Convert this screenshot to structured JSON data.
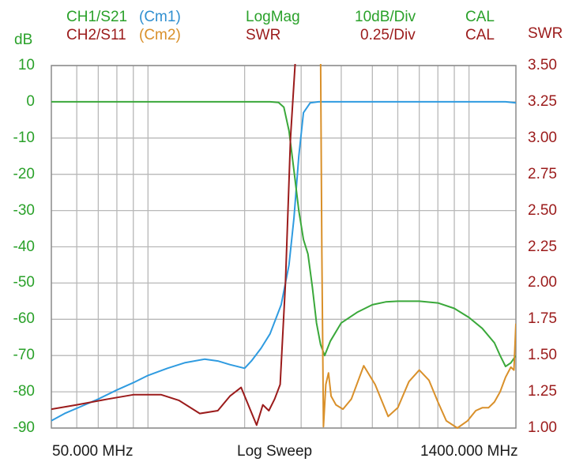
{
  "header": {
    "ch1_label": "CH1/S21",
    "ch1_marker": "(Cm1)",
    "ch2_label": "CH2/S11",
    "ch2_marker": "(Cm2)",
    "ch1_format": "LogMag",
    "ch2_format": "SWR",
    "ch1_scale": "10dB/Div",
    "ch2_scale": "0.25/Div",
    "ch1_cal": "CAL",
    "ch2_cal": "CAL"
  },
  "footer": {
    "start_freq": "50.000 MHz",
    "sweep_mode": "Log Sweep",
    "stop_freq": "1400.000 MHz"
  },
  "colors": {
    "s21": "#2f9be0",
    "s21_band": "#3aa83a",
    "s11": "#9b1b1b",
    "s11_band": "#d9902a",
    "grid": "#b8b8b8",
    "left_axis": "#2aa12a",
    "right_axis": "#9b1b1b"
  },
  "chart_data": {
    "type": "line",
    "x_scale": "log",
    "x_range_mhz": [
      50,
      1400
    ],
    "left_axis": {
      "label": "dB",
      "ylim": [
        -90,
        10
      ],
      "tick_labels": [
        "10",
        "0",
        "-10",
        "-20",
        "-30",
        "-40",
        "-50",
        "-60",
        "-70",
        "-80",
        "-90"
      ]
    },
    "right_axis": {
      "label": "SWR",
      "ylim": [
        1.0,
        3.5
      ],
      "tick_labels": [
        "3.50",
        "3.25",
        "3.00",
        "2.75",
        "2.50",
        "2.25",
        "2.00",
        "1.75",
        "1.50",
        "1.25",
        "1.00"
      ]
    },
    "grid": true,
    "series": [
      {
        "name": "CH1/S21",
        "axis": "left",
        "x_mhz": [
          50,
          55,
          62,
          70,
          80,
          90,
          100,
          115,
          130,
          150,
          165,
          180,
          200,
          210,
          225,
          240,
          260,
          275,
          285,
          295,
          305,
          320,
          340,
          370,
          400,
          450,
          500,
          600,
          700,
          800,
          900,
          1000,
          1100,
          1200,
          1300,
          1400
        ],
        "y": [
          -88,
          -86,
          -84,
          -82,
          -79.5,
          -77.5,
          -75.5,
          -73.5,
          -72,
          -71,
          -71.5,
          -72.5,
          -73.5,
          -71.5,
          -68,
          -64,
          -56,
          -45,
          -32,
          -15,
          -3,
          -0.3,
          0,
          0,
          0,
          0,
          0,
          0,
          0,
          0,
          0,
          0,
          0,
          0,
          0,
          -0.3
        ]
      },
      {
        "name": "CH1/S21 band",
        "axis": "left",
        "x_mhz": [
          50,
          200,
          240,
          255,
          265,
          275,
          285,
          295,
          305,
          315,
          325,
          335,
          345,
          355,
          370,
          400,
          450,
          500,
          550,
          600,
          700,
          800,
          900,
          1000,
          1100,
          1200,
          1250,
          1300,
          1350,
          1400
        ],
        "y": [
          0,
          0,
          0,
          -0.2,
          -1.5,
          -8,
          -19,
          -30,
          -38,
          -42,
          -51,
          -61,
          -67,
          -70,
          -66,
          -61,
          -58,
          -56,
          -55.2,
          -55,
          -55,
          -55.5,
          -57,
          -59.5,
          -62.5,
          -66.5,
          -70,
          -73,
          -72,
          -70
        ]
      },
      {
        "name": "CH2/S11",
        "axis": "right",
        "x_mhz": [
          50,
          60,
          75,
          90,
          110,
          125,
          145,
          165,
          180,
          195,
          208,
          218,
          228,
          238,
          248,
          258,
          268,
          278,
          288
        ],
        "y": [
          1.13,
          1.16,
          1.2,
          1.23,
          1.23,
          1.19,
          1.1,
          1.12,
          1.22,
          1.28,
          1.13,
          1.02,
          1.16,
          1.12,
          1.2,
          1.3,
          2.0,
          3.0,
          3.55
        ]
      },
      {
        "name": "CH2/S11 band",
        "axis": "right",
        "x_mhz": [
          345,
          348,
          352,
          358,
          365,
          372,
          385,
          405,
          430,
          470,
          510,
          560,
          600,
          650,
          700,
          750,
          800,
          850,
          920,
          990,
          1050,
          1100,
          1150,
          1200,
          1250,
          1300,
          1350,
          1380,
          1400
        ],
        "y": [
          3.55,
          2.2,
          1.01,
          1.3,
          1.38,
          1.22,
          1.16,
          1.13,
          1.2,
          1.43,
          1.3,
          1.08,
          1.14,
          1.32,
          1.4,
          1.33,
          1.18,
          1.05,
          1.0,
          1.05,
          1.12,
          1.14,
          1.14,
          1.18,
          1.25,
          1.35,
          1.42,
          1.4,
          1.72
        ]
      }
    ]
  }
}
